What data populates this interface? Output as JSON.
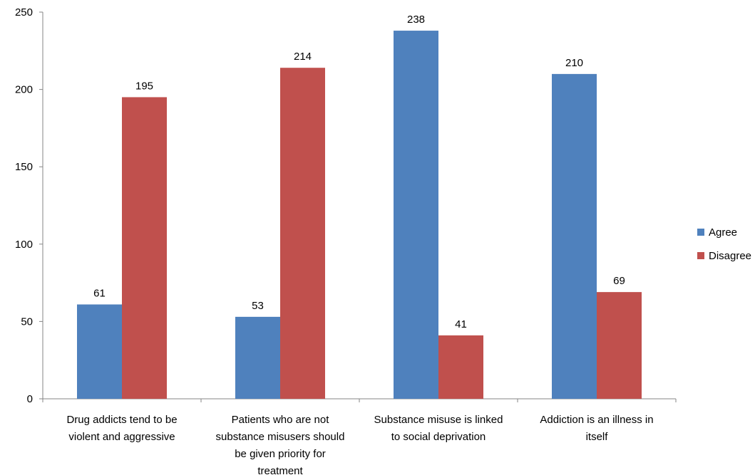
{
  "chart_data": {
    "type": "bar",
    "categories": [
      [
        "Drug addicts tend to be",
        "violent and aggressive"
      ],
      [
        "Patients who are not",
        "substance misusers should",
        "be given priority for",
        "treatment"
      ],
      [
        "Substance misuse is linked",
        "to social deprivation"
      ],
      [
        "Addiction is an illness in",
        "itself"
      ]
    ],
    "series": [
      {
        "name": "Agree",
        "color": "#4F81BD",
        "values": [
          61,
          53,
          238,
          210
        ]
      },
      {
        "name": "Disagree",
        "color": "#C0504D",
        "values": [
          195,
          214,
          41,
          69
        ]
      }
    ],
    "ylim": [
      0,
      250
    ],
    "yticks": [
      0,
      50,
      100,
      150,
      200,
      250
    ],
    "grid": false,
    "legend": "right",
    "data_labels": true
  }
}
